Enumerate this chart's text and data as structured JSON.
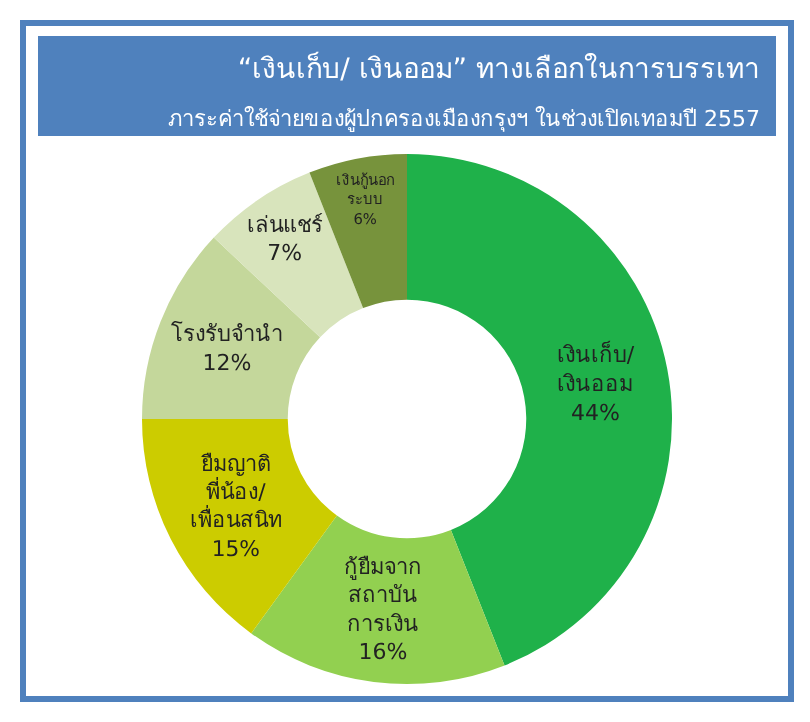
{
  "chart_data": {
    "type": "donut",
    "title": "“เงินเก็บ/ เงินออม” ทางเลือกในการบรรเทา",
    "subtitle": "ภาระค่าใช้จ่ายของผู้ปกครองเมืองกรุงฯ ในช่วงเปิดเทอมปี 2557",
    "categories": [
      "เงินเก็บ/\nเงินออม",
      "กู้ยืมจาก\nสถาบัน\nการเงิน",
      "ยืมญาติ\nพี่น้อง/\nเพื่อนสนิท",
      "โรงรับจำนำ",
      "เล่นแชร์",
      "เงินกู้นอก\nระบบ"
    ],
    "values": [
      44,
      16,
      15,
      12,
      7,
      6
    ],
    "value_labels": [
      "44%",
      "16%",
      "15%",
      "12%",
      "7%",
      "6%"
    ],
    "colors": [
      "#1fb14a",
      "#92d050",
      "#cccc00",
      "#c4d79b",
      "#d8e4bc",
      "#77933c"
    ],
    "legend": false
  }
}
